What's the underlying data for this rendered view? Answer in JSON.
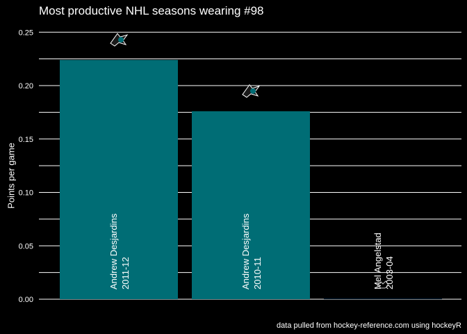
{
  "chart_data": {
    "type": "bar",
    "title": "Most productive NHL seasons wearing #98",
    "xlabel": "",
    "ylabel": "Points per game",
    "ylim": [
      0,
      0.26
    ],
    "yticks": [
      0.0,
      0.05,
      0.1,
      0.15,
      0.2,
      0.25
    ],
    "ytick_labels": [
      "0.00",
      "0.05",
      "0.10",
      "0.15",
      "0.20",
      "0.25"
    ],
    "grid": true,
    "categories": [
      [
        "Andrew Desjardins",
        "2011-12"
      ],
      [
        "Andrew Desjardins",
        "2010-11"
      ],
      [
        "Mel Angelstad",
        "2003-04"
      ]
    ],
    "values": [
      0.224,
      0.176,
      0.0
    ],
    "bar_colors": [
      "#006D75",
      "#006D75",
      "#001628"
    ],
    "logo_icons": [
      "sharks-logo-icon",
      "sharks-logo-icon",
      "capitals-logo-icon"
    ],
    "caption": "data pulled from hockey-reference.com using hockeyR"
  },
  "colors": {
    "background": "#000000",
    "grid": "#ffffff",
    "text": "#ffffff",
    "sharks_teal": "#006D75"
  }
}
